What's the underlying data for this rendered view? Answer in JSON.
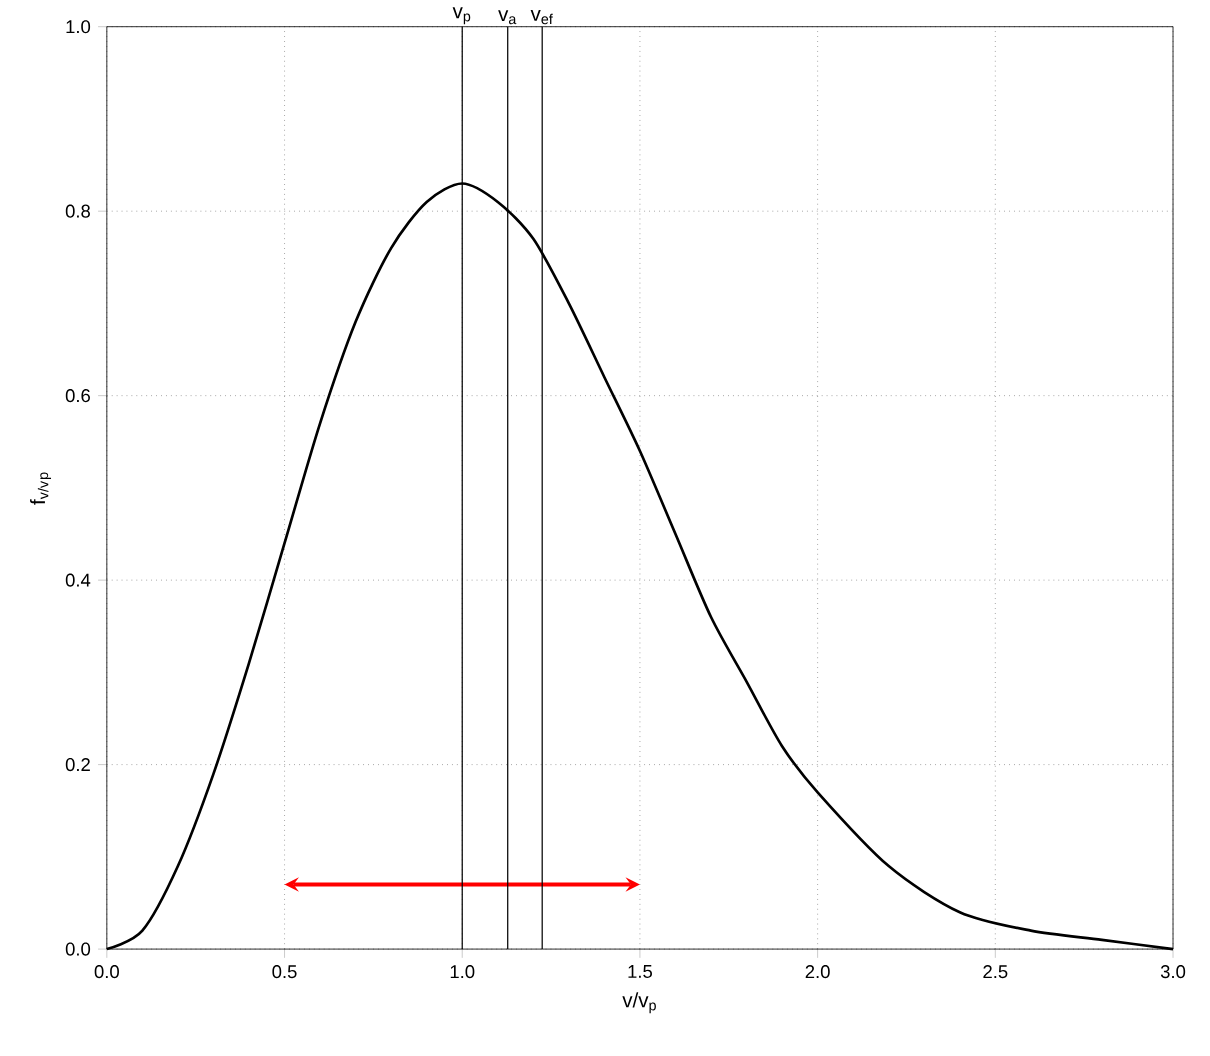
{
  "chart_data": {
    "type": "line",
    "xlabel": "v/v$_{p}$",
    "ylabel": "f$_{v/v}$$_{p}$",
    "x": [
      0,
      0.1,
      0.2,
      0.3,
      0.4,
      0.5,
      0.6,
      0.7,
      0.8,
      0.9,
      1.0,
      1.1,
      1.2,
      1.3,
      1.4,
      1.5,
      1.6,
      1.7,
      1.8,
      1.9,
      2.0,
      2.2,
      2.4,
      2.6,
      2.8,
      3.0
    ],
    "series": [
      {
        "color": "#000000",
        "values": [
          0,
          0.02,
          0.09,
          0.19,
          0.31,
          0.44,
          0.57,
          0.68,
          0.76,
          0.81,
          0.83,
          0.81,
          0.77,
          0.7,
          0.62,
          0.54,
          0.45,
          0.36,
          0.29,
          0.22,
          0.17,
          0.09,
          0.04,
          0.02,
          0.01,
          0
        ]
      }
    ],
    "xlim": [
      0,
      3
    ],
    "ylim": [
      0,
      1
    ],
    "xticks": [
      {
        "value": 0,
        "label": "0.0"
      },
      0.5,
      {
        "value": 1,
        "label": "1.0"
      },
      1.5,
      {
        "value": 2,
        "label": "2.0"
      },
      2.5,
      {
        "value": 3,
        "label": "3.0"
      }
    ],
    "yticks": [
      {
        "value": 0,
        "label": "0.0"
      },
      0.2,
      0.4,
      0.6,
      0.8,
      {
        "value": 1,
        "label": "1.0"
      }
    ],
    "ref_lines": [
      {
        "axis": "x",
        "value": 1.0,
        "label": "v$_{p}$",
        "color": "#000000"
      },
      {
        "axis": "x",
        "value": 1.128,
        "label": "v$_{a}$",
        "color": "#000000"
      },
      {
        "axis": "x",
        "value": 1.225,
        "label": "v$_{ef}$",
        "color": "#000000"
      }
    ],
    "grid": true,
    "marker": "none",
    "line_style": "solid"
  }
}
